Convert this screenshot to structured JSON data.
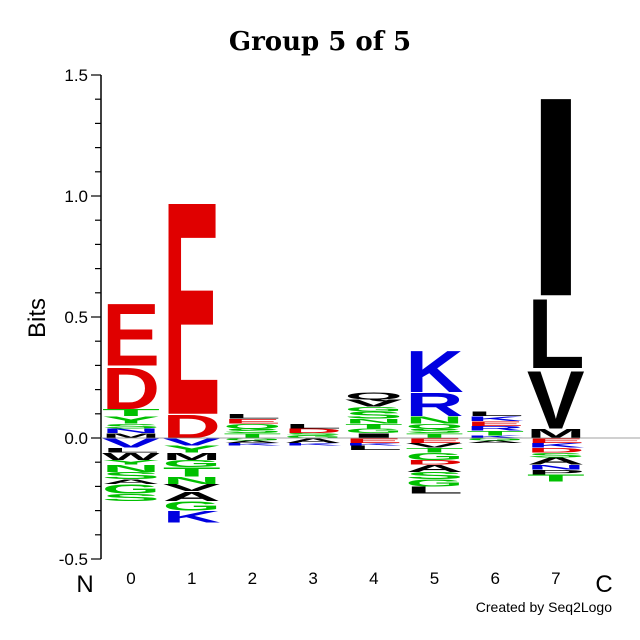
{
  "chart_data": {
    "type": "sequence-logo",
    "title": "Group 5 of 5",
    "ylabel": "Bits",
    "ylim": [
      -0.5,
      1.5
    ],
    "y_ticks": [
      "-0.5",
      "0.0",
      "0.5",
      "1.0",
      "1.5"
    ],
    "y_tick_values": [
      -0.5,
      0.0,
      0.5,
      1.0,
      1.5
    ],
    "positions": [
      "0",
      "1",
      "2",
      "3",
      "4",
      "5",
      "6",
      "7"
    ],
    "n_terminal_label": "N",
    "c_terminal_label": "C",
    "credit": "Created by Seq2Logo",
    "colors": {
      "acidic": "#e00000",
      "basic": "#0000e0",
      "polar": "#00c000",
      "hydrophobic": "#000000"
    },
    "stacks": [
      {
        "position": "0",
        "positive": [
          {
            "letter": "M",
            "height": 0.02,
            "color": "#000000"
          },
          {
            "letter": "N",
            "height": 0.02,
            "color": "#0000e0"
          },
          {
            "letter": "S",
            "height": 0.02,
            "color": "#00c000"
          },
          {
            "letter": "Y",
            "height": 0.03,
            "color": "#00c000"
          },
          {
            "letter": "T",
            "height": 0.03,
            "color": "#00c000"
          },
          {
            "letter": "D",
            "height": 0.18,
            "color": "#e00000"
          },
          {
            "letter": "E",
            "height": 0.27,
            "color": "#e00000"
          }
        ],
        "negative": [
          {
            "letter": "V",
            "height": 0.04,
            "color": "#0000e0"
          },
          {
            "letter": "L",
            "height": 0.02,
            "color": "#000000"
          },
          {
            "letter": "W",
            "height": 0.03,
            "color": "#000000"
          },
          {
            "letter": "Y",
            "height": 0.02,
            "color": "#00c000"
          },
          {
            "letter": "N",
            "height": 0.03,
            "color": "#00c000"
          },
          {
            "letter": "S",
            "height": 0.03,
            "color": "#00c000"
          },
          {
            "letter": "A",
            "height": 0.02,
            "color": "#000000"
          },
          {
            "letter": "G",
            "height": 0.04,
            "color": "#00c000"
          },
          {
            "letter": "S",
            "height": 0.03,
            "color": "#00c000"
          }
        ]
      },
      {
        "position": "1",
        "positive": [
          {
            "letter": "D",
            "height": 0.1,
            "color": "#e00000"
          },
          {
            "letter": "E",
            "height": 0.92,
            "color": "#e00000"
          }
        ],
        "negative": [
          {
            "letter": "V",
            "height": 0.03,
            "color": "#0000e0"
          },
          {
            "letter": "Y",
            "height": 0.03,
            "color": "#00c000"
          },
          {
            "letter": "M",
            "height": 0.03,
            "color": "#000000"
          },
          {
            "letter": "G",
            "height": 0.03,
            "color": "#00c000"
          },
          {
            "letter": "T",
            "height": 0.04,
            "color": "#00c000"
          },
          {
            "letter": "N",
            "height": 0.03,
            "color": "#00c000"
          },
          {
            "letter": "V",
            "height": 0.03,
            "color": "#000000"
          },
          {
            "letter": "A",
            "height": 0.04,
            "color": "#000000"
          },
          {
            "letter": "G",
            "height": 0.04,
            "color": "#00c000"
          },
          {
            "letter": "K",
            "height": 0.05,
            "color": "#0000e0"
          }
        ]
      },
      {
        "position": "2",
        "positive": [
          {
            "letter": "T",
            "height": 0.02,
            "color": "#00c000"
          },
          {
            "letter": "S",
            "height": 0.02,
            "color": "#00c000"
          },
          {
            "letter": "Q",
            "height": 0.02,
            "color": "#00c000"
          },
          {
            "letter": "E",
            "height": 0.02,
            "color": "#e00000"
          },
          {
            "letter": "L",
            "height": 0.02,
            "color": "#000000"
          }
        ],
        "negative": [
          {
            "letter": "G",
            "height": 0.01,
            "color": "#00c000"
          },
          {
            "letter": "A",
            "height": 0.01,
            "color": "#000000"
          },
          {
            "letter": "K",
            "height": 0.01,
            "color": "#0000e0"
          }
        ]
      },
      {
        "position": "3",
        "positive": [
          {
            "letter": "G",
            "height": 0.01,
            "color": "#00c000"
          },
          {
            "letter": "S",
            "height": 0.01,
            "color": "#00c000"
          },
          {
            "letter": "D",
            "height": 0.02,
            "color": "#e00000"
          },
          {
            "letter": "L",
            "height": 0.02,
            "color": "#000000"
          }
        ],
        "negative": [
          {
            "letter": "A",
            "height": 0.02,
            "color": "#000000"
          },
          {
            "letter": "K",
            "height": 0.01,
            "color": "#0000e0"
          }
        ]
      },
      {
        "position": "4",
        "positive": [
          {
            "letter": "I",
            "height": 0.02,
            "color": "#000000"
          },
          {
            "letter": "G",
            "height": 0.02,
            "color": "#00c000"
          },
          {
            "letter": "T",
            "height": 0.02,
            "color": "#00c000"
          },
          {
            "letter": "N",
            "height": 0.02,
            "color": "#00c000"
          },
          {
            "letter": "S",
            "height": 0.03,
            "color": "#00c000"
          },
          {
            "letter": "G",
            "height": 0.02,
            "color": "#00c000"
          },
          {
            "letter": "V",
            "height": 0.03,
            "color": "#000000"
          },
          {
            "letter": "Q",
            "height": 0.03,
            "color": "#000000"
          }
        ],
        "negative": [
          {
            "letter": "E",
            "height": 0.02,
            "color": "#e00000"
          },
          {
            "letter": "K",
            "height": 0.01,
            "color": "#0000e0"
          },
          {
            "letter": "L",
            "height": 0.02,
            "color": "#000000"
          }
        ]
      },
      {
        "position": "5",
        "positive": [
          {
            "letter": "T",
            "height": 0.02,
            "color": "#00c000"
          },
          {
            "letter": "S",
            "height": 0.02,
            "color": "#00c000"
          },
          {
            "letter": "Q",
            "height": 0.02,
            "color": "#00c000"
          },
          {
            "letter": "N",
            "height": 0.03,
            "color": "#00c000"
          },
          {
            "letter": "R",
            "height": 0.1,
            "color": "#0000e0"
          },
          {
            "letter": "K",
            "height": 0.18,
            "color": "#0000e0"
          }
        ],
        "negative": [
          {
            "letter": "E",
            "height": 0.02,
            "color": "#e00000"
          },
          {
            "letter": "V",
            "height": 0.02,
            "color": "#000000"
          },
          {
            "letter": "T",
            "height": 0.02,
            "color": "#00c000"
          },
          {
            "letter": "G",
            "height": 0.03,
            "color": "#00c000"
          },
          {
            "letter": "D",
            "height": 0.02,
            "color": "#e00000"
          },
          {
            "letter": "A",
            "height": 0.03,
            "color": "#000000"
          },
          {
            "letter": "S",
            "height": 0.03,
            "color": "#00c000"
          },
          {
            "letter": "G",
            "height": 0.03,
            "color": "#00c000"
          },
          {
            "letter": "L",
            "height": 0.03,
            "color": "#000000"
          }
        ]
      },
      {
        "position": "6",
        "positive": [
          {
            "letter": "K",
            "height": 0.01,
            "color": "#0000e0"
          },
          {
            "letter": "T",
            "height": 0.02,
            "color": "#00c000"
          },
          {
            "letter": "R",
            "height": 0.02,
            "color": "#0000e0"
          },
          {
            "letter": "E",
            "height": 0.02,
            "color": "#e00000"
          },
          {
            "letter": "K",
            "height": 0.02,
            "color": "#0000e0"
          },
          {
            "letter": "L",
            "height": 0.02,
            "color": "#000000"
          }
        ],
        "negative": [
          {
            "letter": "G",
            "height": 0.01,
            "color": "#00c000"
          },
          {
            "letter": "A",
            "height": 0.01,
            "color": "#000000"
          }
        ]
      },
      {
        "position": "7",
        "positive": [
          {
            "letter": "M",
            "height": 0.04,
            "color": "#000000"
          },
          {
            "letter": "V",
            "height": 0.25,
            "color": "#000000"
          },
          {
            "letter": "L",
            "height": 0.3,
            "color": "#000000"
          },
          {
            "letter": "I",
            "height": 0.86,
            "color": "#000000"
          }
        ],
        "negative": [
          {
            "letter": "E",
            "height": 0.02,
            "color": "#e00000"
          },
          {
            "letter": "K",
            "height": 0.02,
            "color": "#0000e0"
          },
          {
            "letter": "D",
            "height": 0.02,
            "color": "#e00000"
          },
          {
            "letter": "S",
            "height": 0.02,
            "color": "#00c000"
          },
          {
            "letter": "A",
            "height": 0.03,
            "color": "#000000"
          },
          {
            "letter": "N",
            "height": 0.02,
            "color": "#0000e0"
          },
          {
            "letter": "P",
            "height": 0.02,
            "color": "#000000"
          },
          {
            "letter": "T",
            "height": 0.03,
            "color": "#00c000"
          }
        ]
      }
    ]
  }
}
